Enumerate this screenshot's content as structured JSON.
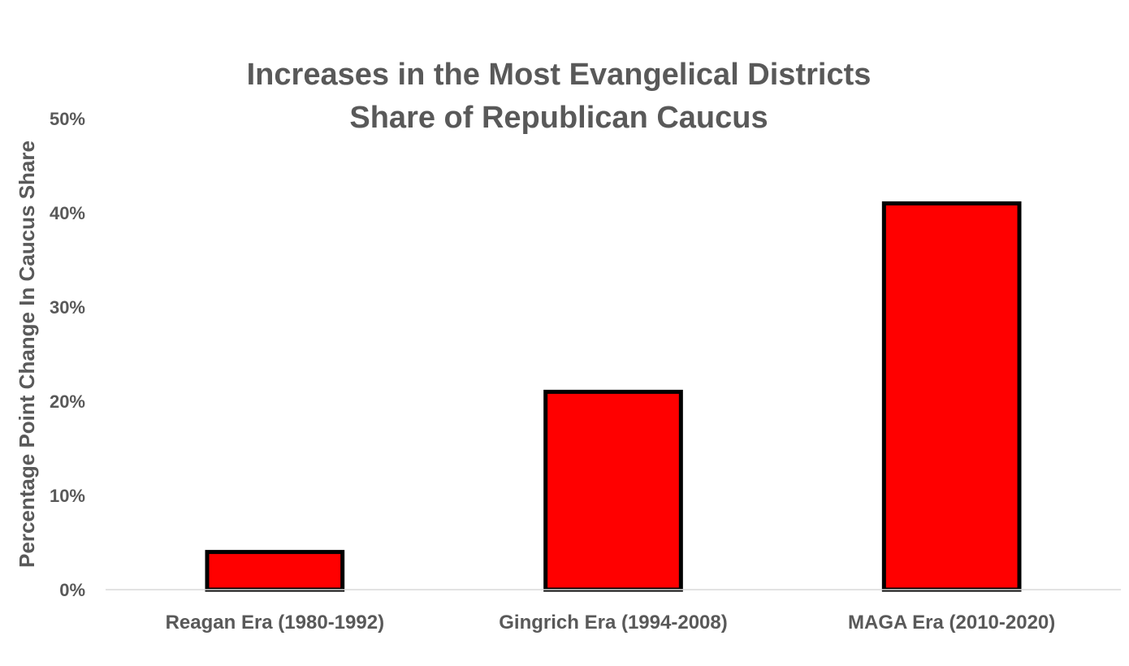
{
  "chart_data": {
    "type": "bar",
    "title": [
      "Increases in the Most Evangelical Districts",
      "Share of Republican Caucus"
    ],
    "xlabel": "",
    "ylabel": "Percentage Point Change In Caucus Share",
    "categories": [
      "Reagan Era (1980-1992)",
      "Gingrich Era (1994-2008)",
      "MAGA Era (2010-2020)"
    ],
    "values": [
      4,
      21,
      41
    ],
    "ylim": [
      0,
      50
    ],
    "yticks": [
      0,
      10,
      20,
      30,
      40,
      50
    ],
    "ytick_labels": [
      "0%",
      "10%",
      "20%",
      "30%",
      "40%",
      "50%"
    ],
    "value_unit": "%",
    "grid": false,
    "legend": "none",
    "colors": {
      "bar_fill": "#ff0000",
      "bar_stroke": "#000000",
      "text": "#595959",
      "axis": "#d9d9d9"
    }
  }
}
